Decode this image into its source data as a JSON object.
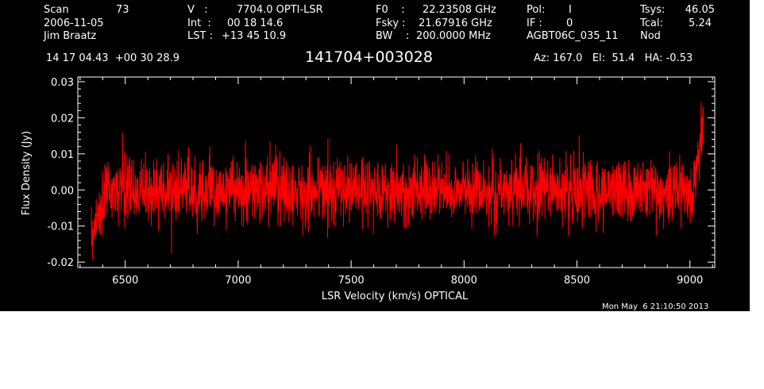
{
  "header": {
    "scan_label": "Scan",
    "scan_number": "73",
    "date": "2006-11-05",
    "observer": "Jim Braatz",
    "v_label": "V   :",
    "v_value": "7704.0 OPTI-LSR",
    "int_label": "Int  :",
    "int_value": "00 18 14.6",
    "lst_label": "LST :",
    "lst_value": "+13 45 10.9",
    "f0_label": "F0    :",
    "f0_value": "22.23508 GHz",
    "fsky_label": "Fsky :",
    "fsky_value": "21.67916 GHz",
    "bw_label": "BW    :",
    "bw_value": "200.0000 MHz",
    "pol_label": "Pol:",
    "pol_value": "I",
    "if_label": "IF :",
    "if_value": "0",
    "project": "AGBT06C_035_11",
    "tsys_label": "Tsys:",
    "tsys_value": "46.05",
    "tcal_label": "Tcal:",
    "tcal_value": "5.24",
    "mode": "Nod",
    "coords": "14 17 04.43  +00 30 28.9",
    "source": "141704+003028",
    "az_el_ha": "Az: 167.0   El:  51.4   HA: -0.53",
    "timestamp": "Mon May  6 21:10:50 2013"
  },
  "colors": {
    "background": "#000000",
    "axes": "#ffffff",
    "trace": "#ff0000"
  },
  "chart_data": {
    "type": "line",
    "xlabel": "LSR Velocity (km/s) OPTICAL",
    "ylabel": "Flux Density (Jy)",
    "xlim": [
      6290,
      9110
    ],
    "ylim": [
      -0.0215,
      0.0313
    ],
    "xticks": [
      6500,
      7000,
      7500,
      8000,
      8500,
      9000
    ],
    "xtick_labels": [
      "6500",
      "7000",
      "7500",
      "8000",
      "8500",
      "9000"
    ],
    "yticks": [
      -0.02,
      -0.01,
      0.0,
      0.01,
      0.02,
      0.03
    ],
    "ytick_labels": [
      "-0.02",
      "-0.01",
      "0.00",
      "0.01",
      "0.02",
      "0.03"
    ],
    "grid": false,
    "series": [
      {
        "color": "#ff0000",
        "x_start": 6350,
        "x_end": 9060,
        "noise_rms_jy": 0.0045,
        "baseline_jy": 0.0,
        "left_edge_dip_jy": -0.012,
        "right_edge_peak_jy": 0.022
      }
    ]
  }
}
